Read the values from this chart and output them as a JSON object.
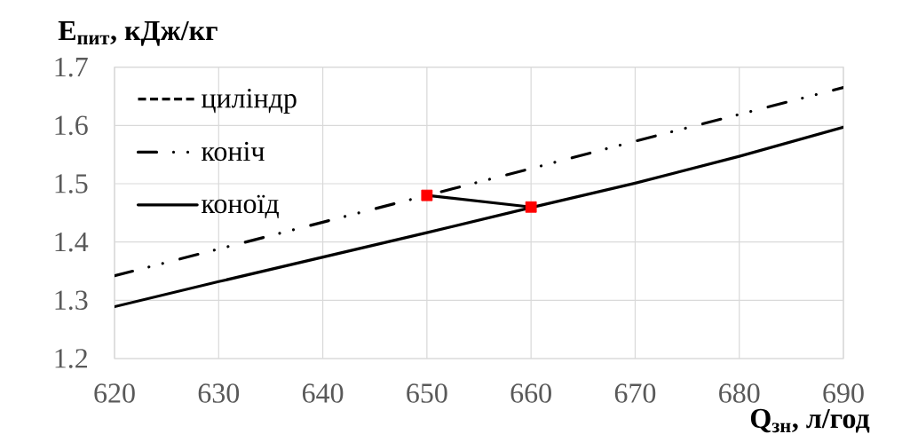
{
  "chart_data": {
    "type": "line",
    "xlabel": "Q$_{зн}$, л/год",
    "ylabel": "E$_{пит}$, кДж/кг",
    "x": [
      620,
      630,
      640,
      650,
      660,
      670,
      680,
      690
    ],
    "series": [
      {
        "name": "циліндр",
        "color": "#000000",
        "line_style": "dashed",
        "values": [
          null,
          null,
          null,
          null,
          null,
          null,
          null,
          null
        ]
      },
      {
        "name": "коніч",
        "color": "#000000",
        "line_style": "dashdotdot",
        "values": [
          1.342,
          1.388,
          1.434,
          1.48,
          1.526,
          1.573,
          1.619,
          1.665
        ]
      },
      {
        "name": "коноїд",
        "color": "#000000",
        "line_style": "solid",
        "values": [
          1.289,
          1.332,
          1.374,
          1.416,
          1.459,
          1.501,
          1.547,
          1.597
        ]
      },
      {
        "type": "line",
        "color": "#000000",
        "line_style": "solid",
        "values": [
          null,
          null,
          null,
          1.48,
          1.46,
          null,
          null,
          null
        ]
      },
      {
        "type": "scatter",
        "color": "#ff0000",
        "marker": "square",
        "values": [
          null,
          null,
          null,
          1.48,
          1.46,
          null,
          null,
          null
        ]
      }
    ],
    "xlim": [
      620,
      690
    ],
    "ylim": [
      1.2,
      1.7
    ],
    "xticks": [
      620,
      630,
      640,
      650,
      660,
      670,
      680,
      690
    ],
    "yticks": [
      1.2,
      1.3,
      1.4,
      1.5,
      1.6,
      1.7
    ],
    "grid": true,
    "legend": "top left",
    "marker": "none"
  }
}
